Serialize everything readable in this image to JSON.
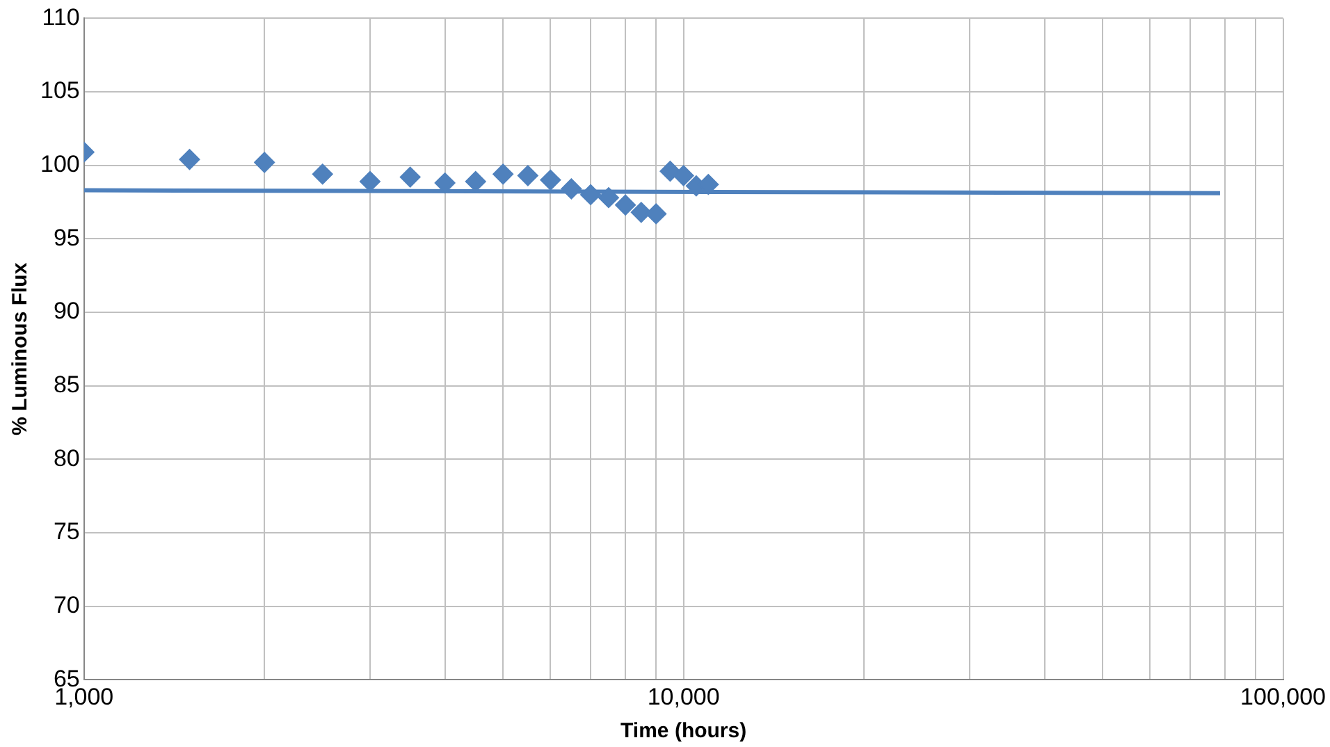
{
  "chart_data": {
    "type": "scatter",
    "xlabel": "Time (hours)",
    "ylabel": "% Luminous Flux",
    "log": "x",
    "grid": true,
    "legend": false,
    "xlim": [
      1000,
      100000
    ],
    "ylim": [
      65,
      110
    ],
    "xticks": [
      {
        "value": 1000,
        "label": "1,000"
      },
      {
        "value": 2000,
        "label": null
      },
      {
        "value": 3000,
        "label": null
      },
      {
        "value": 4000,
        "label": null
      },
      {
        "value": 5000,
        "label": null
      },
      {
        "value": 6000,
        "label": null
      },
      {
        "value": 7000,
        "label": null
      },
      {
        "value": 8000,
        "label": null
      },
      {
        "value": 9000,
        "label": null
      },
      {
        "value": 10000,
        "label": "10,000"
      },
      {
        "value": 20000,
        "label": null
      },
      {
        "value": 30000,
        "label": null
      },
      {
        "value": 40000,
        "label": null
      },
      {
        "value": 50000,
        "label": null
      },
      {
        "value": 60000,
        "label": null
      },
      {
        "value": 70000,
        "label": null
      },
      {
        "value": 80000,
        "label": null
      },
      {
        "value": 90000,
        "label": null
      },
      {
        "value": 100000,
        "label": "100,000"
      }
    ],
    "yticks": [
      65,
      70,
      75,
      80,
      85,
      90,
      95,
      100,
      105,
      110
    ],
    "series": [
      {
        "type": "scatter",
        "color": "#4f81bd",
        "marker": "diamond",
        "x": [
          1000,
          1500,
          2000,
          2500,
          3000,
          3500,
          4000,
          4500,
          5000,
          5500,
          6000,
          6500,
          7000,
          7500,
          8000,
          8500,
          9000,
          9500,
          10000,
          10500,
          11000
        ],
        "values": [
          100.9,
          100.4,
          100.2,
          99.4,
          98.9,
          99.2,
          98.8,
          98.9,
          99.4,
          99.3,
          99.0,
          98.4,
          98.0,
          97.8,
          97.3,
          96.8,
          96.7,
          99.6,
          99.3,
          98.6,
          98.7
        ]
      },
      {
        "type": "line",
        "color": "#4f81bd",
        "marker": "none",
        "line_style": "solid",
        "x": [
          1000,
          78500
        ],
        "values": [
          98.3,
          98.1
        ]
      }
    ]
  }
}
